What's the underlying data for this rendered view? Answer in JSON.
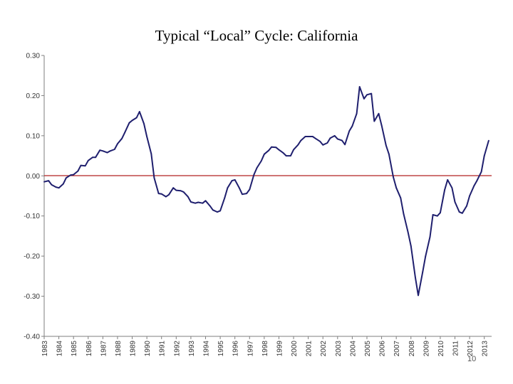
{
  "slide": {
    "page_number": "10"
  },
  "chart_data": {
    "type": "line",
    "title": "Typical “Local” Cycle: California",
    "xlabel": "",
    "ylabel": "",
    "xlim": [
      1983,
      2013.5
    ],
    "ylim": [
      -0.4,
      0.3
    ],
    "grid": false,
    "legend": "none",
    "yticks": [
      "0.30",
      "0.20",
      "0.10",
      "0.00",
      "-0.10",
      "-0.20",
      "-0.30",
      "-0.40"
    ],
    "xticks": [
      "1983",
      "1984",
      "1985",
      "1986",
      "1987",
      "1988",
      "1989",
      "1990",
      "1991",
      "1992",
      "1993",
      "1994",
      "1995",
      "1996",
      "1997",
      "1998",
      "1999",
      "2000",
      "2001",
      "2002",
      "2003",
      "2004",
      "2005",
      "2006",
      "2007",
      "2008",
      "2009",
      "2010",
      "2011",
      "2012",
      "2013"
    ],
    "colors": {
      "series": "#1f1f6e",
      "zero_line": "#b22222",
      "axis": "#7f7f7f"
    },
    "series": [
      {
        "x": [
          1983.0,
          1983.3,
          1983.5,
          1983.8,
          1984.0,
          1984.3,
          1984.5,
          1984.8,
          1985.0,
          1985.3,
          1985.5,
          1985.8,
          1986.0,
          1986.3,
          1986.5,
          1986.8,
          1987.0,
          1987.3,
          1987.5,
          1987.8,
          1988.0,
          1988.3,
          1988.5,
          1988.8,
          1989.0,
          1989.3,
          1989.5,
          1989.8,
          1990.0,
          1990.3,
          1990.5,
          1990.8,
          1991.0,
          1991.3,
          1991.5,
          1991.8,
          1992.0,
          1992.3,
          1992.5,
          1992.8,
          1993.0,
          1993.3,
          1993.5,
          1993.8,
          1994.0,
          1994.3,
          1994.5,
          1994.8,
          1995.0,
          1995.3,
          1995.5,
          1995.8,
          1996.0,
          1996.3,
          1996.5,
          1996.8,
          1997.0,
          1997.3,
          1997.5,
          1997.8,
          1998.0,
          1998.3,
          1998.5,
          1998.8,
          1999.0,
          1999.3,
          1999.5,
          1999.8,
          2000.0,
          2000.3,
          2000.5,
          2000.8,
          2001.0,
          2001.3,
          2001.5,
          2001.8,
          2002.0,
          2002.3,
          2002.5,
          2002.8,
          2003.0,
          2003.3,
          2003.5,
          2003.8,
          2004.0,
          2004.3,
          2004.5,
          2004.8,
          2005.0,
          2005.3,
          2005.5,
          2005.8,
          2006.0,
          2006.3,
          2006.5,
          2006.8,
          2007.0,
          2007.3,
          2007.5,
          2007.8,
          2008.0,
          2008.3,
          2008.5,
          2008.8,
          2009.0,
          2009.3,
          2009.5,
          2009.8,
          2010.0,
          2010.3,
          2010.5,
          2010.8,
          2011.0,
          2011.3,
          2011.5,
          2011.8,
          2012.0,
          2012.3,
          2012.5,
          2012.8,
          2013.0,
          2013.3
        ],
        "values": [
          -0.015,
          -0.012,
          -0.022,
          -0.028,
          -0.03,
          -0.02,
          -0.005,
          0.002,
          0.003,
          0.012,
          0.026,
          0.025,
          0.038,
          0.046,
          0.046,
          0.064,
          0.062,
          0.058,
          0.062,
          0.066,
          0.08,
          0.093,
          0.108,
          0.132,
          0.138,
          0.145,
          0.16,
          0.13,
          0.098,
          0.055,
          -0.005,
          -0.044,
          -0.045,
          -0.052,
          -0.047,
          -0.03,
          -0.036,
          -0.037,
          -0.04,
          -0.052,
          -0.065,
          -0.068,
          -0.066,
          -0.068,
          -0.062,
          -0.075,
          -0.085,
          -0.09,
          -0.087,
          -0.055,
          -0.03,
          -0.012,
          -0.01,
          -0.03,
          -0.046,
          -0.044,
          -0.034,
          0.003,
          0.02,
          0.037,
          0.054,
          0.063,
          0.072,
          0.071,
          0.065,
          0.057,
          0.05,
          0.05,
          0.065,
          0.077,
          0.088,
          0.098,
          0.098,
          0.098,
          0.093,
          0.086,
          0.077,
          0.082,
          0.094,
          0.1,
          0.092,
          0.088,
          0.078,
          0.112,
          0.124,
          0.155,
          0.222,
          0.192,
          0.202,
          0.205,
          0.136,
          0.155,
          0.126,
          0.076,
          0.054,
          -0.003,
          -0.03,
          -0.055,
          -0.095,
          -0.14,
          -0.175,
          -0.253,
          -0.298,
          -0.24,
          -0.2,
          -0.152,
          -0.097,
          -0.1,
          -0.092,
          -0.035,
          -0.01,
          -0.03,
          -0.065,
          -0.09,
          -0.093,
          -0.075,
          -0.05,
          -0.025,
          -0.012,
          0.01,
          0.05,
          0.088
        ]
      }
    ]
  }
}
